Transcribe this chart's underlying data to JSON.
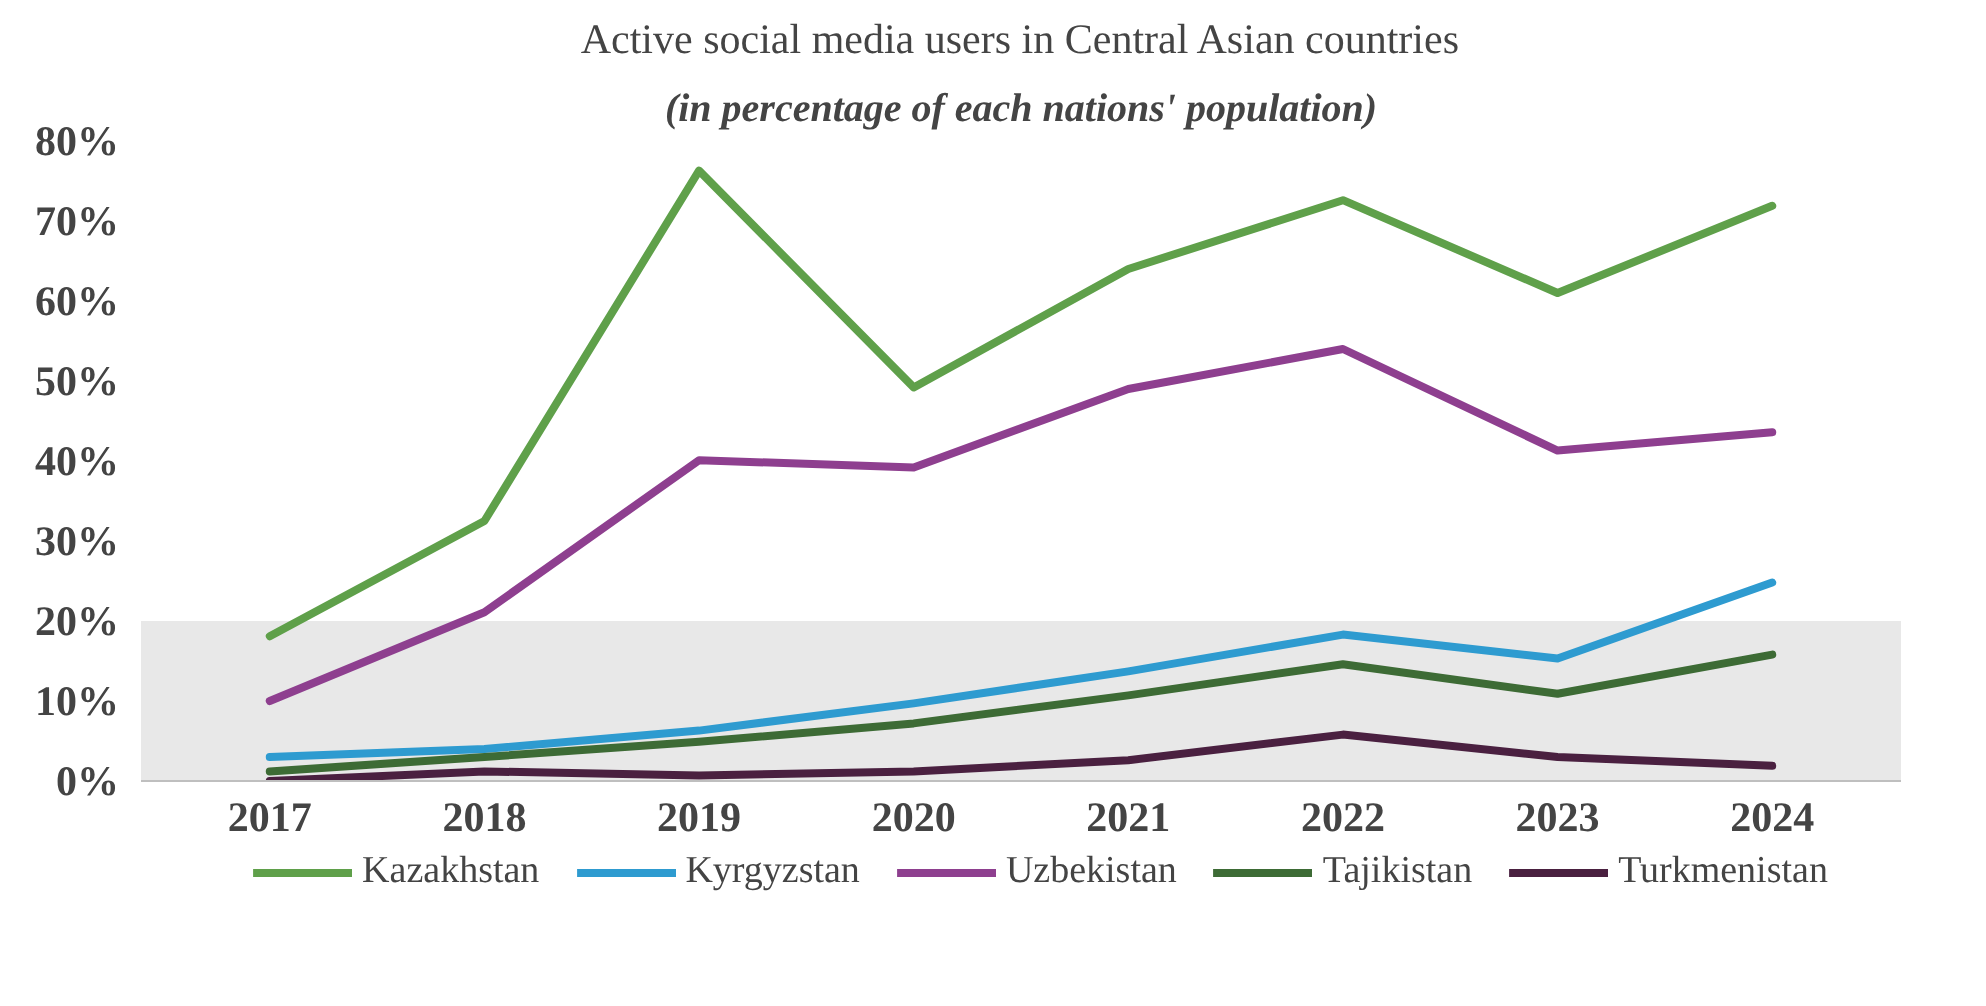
{
  "chart_data": {
    "type": "line",
    "title": "Active social media users in Central Asian countries",
    "subtitle": "(in percentage of each nations' population)",
    "categories": [
      "2017",
      "2018",
      "2019",
      "2020",
      "2021",
      "2022",
      "2023",
      "2024"
    ],
    "series": [
      {
        "name": "Kazakhstan",
        "color": "#5fa04a",
        "values": [
          18.1,
          32.5,
          76.3,
          49.2,
          64,
          72.6,
          61,
          71.9
        ]
      },
      {
        "name": "Kyrgyzstan",
        "color": "#2e9bd0",
        "values": [
          3,
          4,
          6.3,
          9.7,
          13.7,
          18.3,
          15.3,
          24.8
        ]
      },
      {
        "name": "Uzbekistan",
        "color": "#8e3f8f",
        "values": [
          10,
          21.1,
          40.1,
          39.2,
          49,
          54,
          41.3,
          43.6
        ]
      },
      {
        "name": "Tajikistan",
        "color": "#3d6b35",
        "values": [
          1.2,
          3,
          4.9,
          7.2,
          10.7,
          14.6,
          10.9,
          15.8
        ]
      },
      {
        "name": "Turkmenistan",
        "color": "#4a2040",
        "values": [
          0,
          1.2,
          0.7,
          1.2,
          2.6,
          5.8,
          3,
          1.9
        ]
      }
    ],
    "ylim": [
      0,
      80
    ],
    "yticks": [
      {
        "value": 0,
        "label": "0%"
      },
      {
        "value": 10,
        "label": "10%"
      },
      {
        "value": 20,
        "label": "20%"
      },
      {
        "value": 30,
        "label": "30%"
      },
      {
        "value": 40,
        "label": "40%"
      },
      {
        "value": 50,
        "label": "50%"
      },
      {
        "value": 60,
        "label": "60%"
      },
      {
        "value": 70,
        "label": "70%"
      },
      {
        "value": 80,
        "label": "80%"
      }
    ],
    "bands": [
      {
        "axis": "y",
        "from": 0,
        "to": 20,
        "color": "#d9d9d9"
      }
    ],
    "grid": false,
    "legend": "bottom",
    "marker": "none",
    "line_style": "solid"
  }
}
